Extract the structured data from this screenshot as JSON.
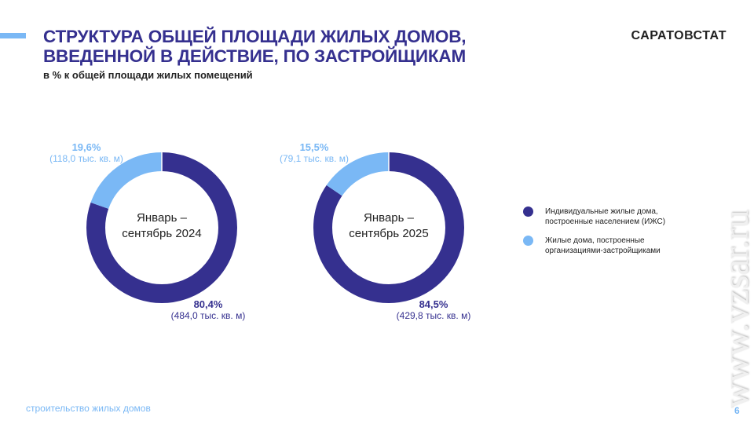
{
  "header": {
    "title_line1": "СТРУКТУРА ОБЩЕЙ ПЛОЩАДИ ЖИЛЫХ ДОМОВ,",
    "title_line2": "ВВЕДЕННОЙ В ДЕЙСТВИЕ, ПО ЗАСТРОЙЩИКАМ",
    "subtitle": "в % к общей площади жилых помещений",
    "brand": "САРАТОВСТАТ"
  },
  "footer": {
    "section": "строительство жилых домов",
    "page": "6",
    "watermark": "www.vzsar.ru"
  },
  "chart_data": [
    {
      "type": "pie",
      "title": "Январь – сентябрь 2024",
      "center_line1": "Январь –",
      "center_line2": "сентябрь 2024",
      "slices": [
        {
          "name": "Индивидуальные жилые дома, построенные населением (ИЖС)",
          "value": 80.4,
          "label": "80,4%",
          "detail": "(484,0 тыс. кв. м)",
          "color": "#35308f"
        },
        {
          "name": "Жилые дома, построенные организациями-застройщиками",
          "value": 19.6,
          "label": "19,6%",
          "detail": "(118,0 тыс. кв. м)",
          "color": "#7ab8f5"
        }
      ]
    },
    {
      "type": "pie",
      "title": "Январь – сентябрь 2025",
      "center_line1": "Январь –",
      "center_line2": "сентябрь 2025",
      "slices": [
        {
          "name": "Индивидуальные жилые дома, построенные населением (ИЖС)",
          "value": 84.5,
          "label": "84,5%",
          "detail": "(429,8 тыс. кв. м)",
          "color": "#35308f"
        },
        {
          "name": "Жилые дома, построенные организациями-застройщиками",
          "value": 15.5,
          "label": "15,5%",
          "detail": "(79,1 тыс. кв. м)",
          "color": "#7ab8f5"
        }
      ]
    }
  ],
  "legend": [
    {
      "line1": "Индивидуальные жилые дома,",
      "line2": "построенные населением (ИЖС)",
      "color": "#35308f"
    },
    {
      "line1": "Жилые дома,  построенные",
      "line2": "организациями-застройщиками",
      "color": "#7ab8f5"
    }
  ]
}
